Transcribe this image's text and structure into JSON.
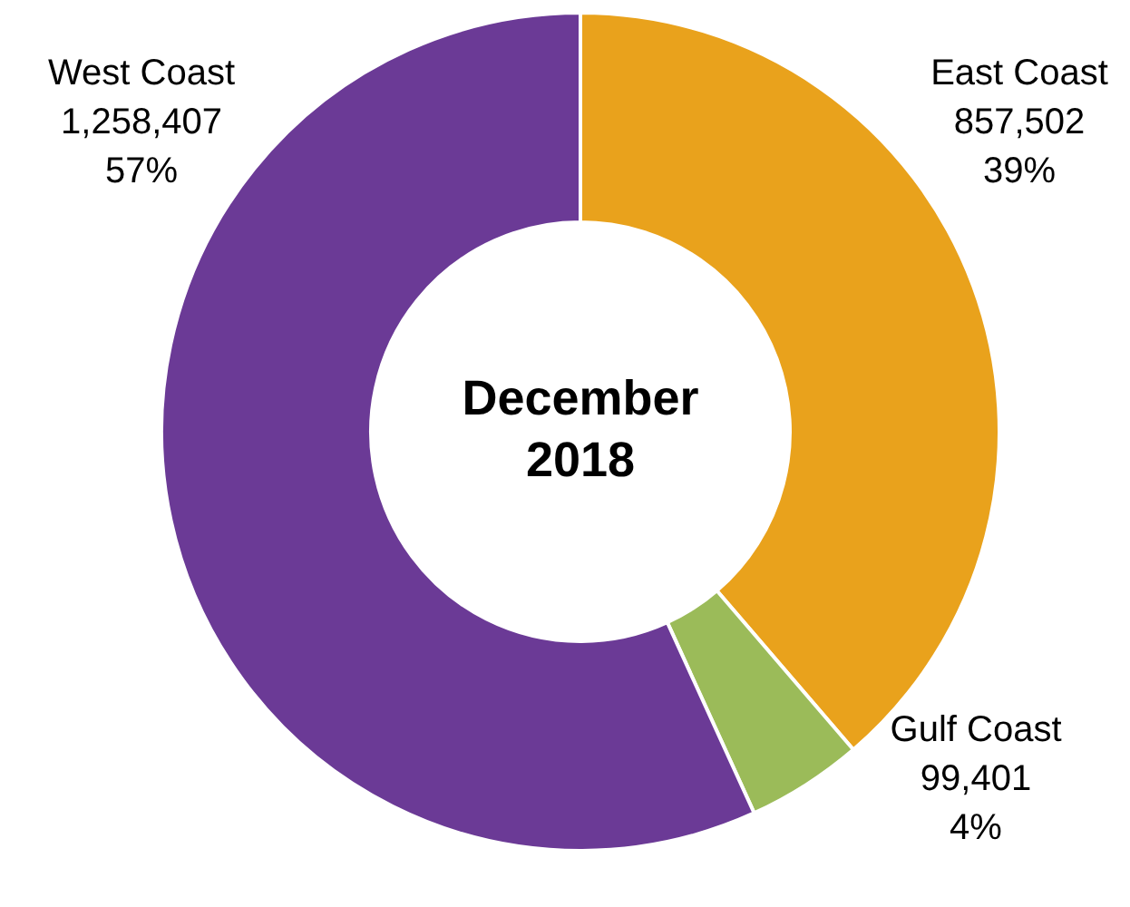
{
  "chart_data": {
    "type": "donut",
    "title": "December 2018",
    "categories": [
      "East Coast",
      "Gulf Coast",
      "West Coast"
    ],
    "values": [
      857502,
      99401,
      1258407
    ],
    "colors": [
      "#e9a21c",
      "#9bbb59",
      "#6b3a96"
    ],
    "value_labels": [
      "857,502\n39%",
      "99,401\n4%",
      "1,258,407\n57%"
    ],
    "legend": false
  }
}
